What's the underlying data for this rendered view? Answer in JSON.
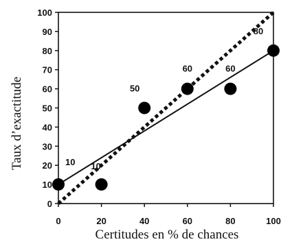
{
  "chart_data": {
    "type": "scatter",
    "title": "",
    "xlabel": "Certitudes en % de chances",
    "ylabel": "Taux d’exactitude",
    "xlim": [
      0,
      100
    ],
    "ylim": [
      0,
      100
    ],
    "xticks": [
      0,
      20,
      40,
      60,
      80,
      100
    ],
    "yticks": [
      0,
      10,
      20,
      30,
      40,
      50,
      60,
      70,
      80,
      90,
      100
    ],
    "grid": false,
    "points": [
      {
        "x": 0,
        "y": 10,
        "label": "10"
      },
      {
        "x": 20,
        "y": 10,
        "label": "10"
      },
      {
        "x": 40,
        "y": 50,
        "label": "50"
      },
      {
        "x": 60,
        "y": 60,
        "label": "60"
      },
      {
        "x": 80,
        "y": 60,
        "label": "60"
      },
      {
        "x": 100,
        "y": 80,
        "label": "80"
      }
    ],
    "lines": [
      {
        "style": "solid",
        "from": [
          0,
          10
        ],
        "to": [
          100,
          80
        ]
      },
      {
        "style": "dotted",
        "from": [
          0,
          0
        ],
        "to": [
          100,
          100
        ]
      }
    ]
  }
}
